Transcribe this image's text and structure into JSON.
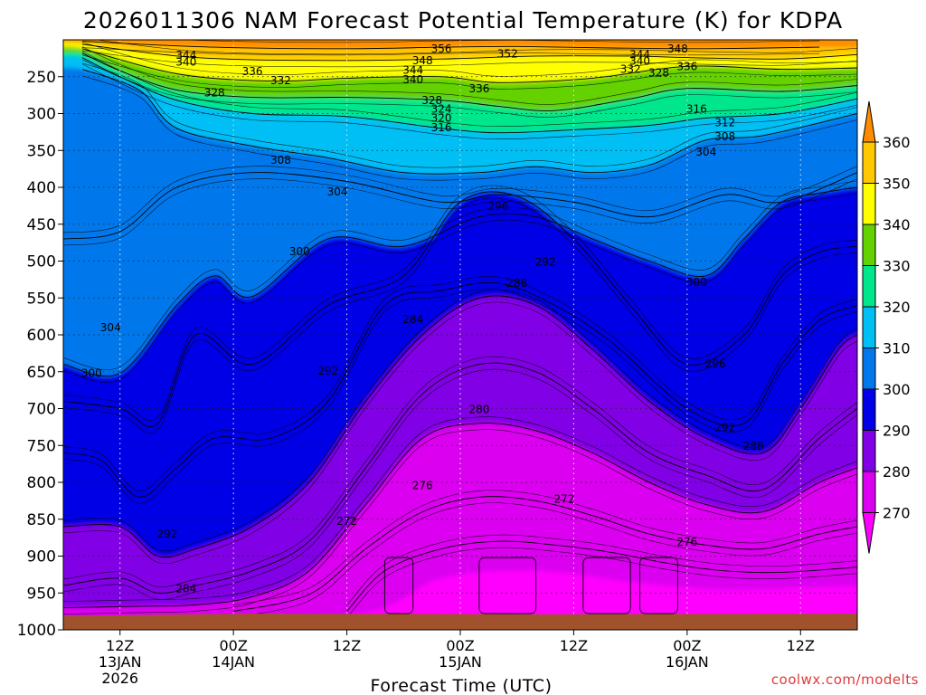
{
  "chart_data": {
    "type": "contour",
    "title": "2026011306 NAM Forecast Potential Temperature (K) for KDPA",
    "xlabel": "Forecast Time (UTC)",
    "ylabel": "",
    "credit": "coolwx.com/modelts",
    "y_axis": {
      "scale": "pressure (reversed, hPa)",
      "range": [
        200,
        1000
      ],
      "ticks": [
        "250",
        "300",
        "350",
        "400",
        "450",
        "500",
        "550",
        "600",
        "650",
        "700",
        "750",
        "800",
        "850",
        "900",
        "950",
        "1000"
      ]
    },
    "x_axis": {
      "range_hours": [
        0,
        84
      ],
      "ticks": [
        {
          "h": 6,
          "line1": "12Z",
          "line2": "13JAN",
          "line3": "2026"
        },
        {
          "h": 18,
          "line1": "00Z",
          "line2": "14JAN",
          "line3": ""
        },
        {
          "h": 30,
          "line1": "12Z",
          "line2": "",
          "line3": ""
        },
        {
          "h": 42,
          "line1": "00Z",
          "line2": "15JAN",
          "line3": ""
        },
        {
          "h": 54,
          "line1": "12Z",
          "line2": "",
          "line3": ""
        },
        {
          "h": 66,
          "line1": "00Z",
          "line2": "16JAN",
          "line3": ""
        },
        {
          "h": 78,
          "line1": "12Z",
          "line2": "",
          "line3": ""
        }
      ]
    },
    "grid": true,
    "colorbar": {
      "levels": [
        "360",
        "350",
        "340",
        "330",
        "320",
        "310",
        "300",
        "290",
        "280",
        "270"
      ],
      "colors": [
        "#ff8c00",
        "#ffc800",
        "#ffff00",
        "#64d200",
        "#00e68c",
        "#00bff5",
        "#0078eb",
        "#0000e6",
        "#8200e6",
        "#dc00f0",
        "#ff00ff"
      ]
    },
    "series": [
      {
        "name": "",
        "level": 356,
        "values": [
          [
            2,
            202
          ],
          [
            16,
            210
          ],
          [
            30,
            212
          ],
          [
            40,
            210
          ],
          [
            48,
            209
          ],
          [
            58,
            211
          ],
          [
            68,
            212
          ],
          [
            80,
            210
          ]
        ]
      },
      {
        "name": "",
        "level": 344,
        "values": [
          [
            2,
            206
          ],
          [
            14,
            224
          ],
          [
            28,
            228
          ],
          [
            40,
            226
          ],
          [
            50,
            222
          ],
          [
            60,
            222
          ],
          [
            66,
            224
          ],
          [
            76,
            226
          ],
          [
            84,
            220
          ]
        ]
      },
      {
        "name": "",
        "level": 336,
        "values": [
          [
            2,
            212
          ],
          [
            12,
            246
          ],
          [
            22,
            256
          ],
          [
            30,
            252
          ],
          [
            40,
            250
          ],
          [
            46,
            258
          ],
          [
            56,
            252
          ],
          [
            66,
            236
          ],
          [
            76,
            240
          ],
          [
            84,
            238
          ]
        ]
      },
      {
        "name": "",
        "level": 328,
        "values": [
          [
            2,
            218
          ],
          [
            6,
            242
          ],
          [
            12,
            268
          ],
          [
            20,
            278
          ],
          [
            30,
            278
          ],
          [
            40,
            282
          ],
          [
            46,
            290
          ],
          [
            52,
            296
          ],
          [
            60,
            280
          ],
          [
            66,
            266
          ],
          [
            76,
            270
          ],
          [
            84,
            262
          ]
        ]
      },
      {
        "name": "",
        "level": 316,
        "values": [
          [
            2,
            224
          ],
          [
            6,
            250
          ],
          [
            12,
            282
          ],
          [
            20,
            300
          ],
          [
            30,
            304
          ],
          [
            40,
            320
          ],
          [
            46,
            326
          ],
          [
            54,
            322
          ],
          [
            62,
            316
          ],
          [
            68,
            306
          ],
          [
            76,
            300
          ],
          [
            84,
            280
          ]
        ]
      },
      {
        "name": "",
        "level": 308,
        "values": [
          [
            2,
            240
          ],
          [
            8,
            268
          ],
          [
            12,
            320
          ],
          [
            20,
            344
          ],
          [
            28,
            360
          ],
          [
            36,
            380
          ],
          [
            44,
            380
          ],
          [
            50,
            372
          ],
          [
            56,
            380
          ],
          [
            62,
            370
          ],
          [
            68,
            336
          ],
          [
            74,
            330
          ],
          [
            84,
            300
          ]
        ]
      },
      {
        "name": "",
        "level": 304,
        "values": [
          [
            0,
            470
          ],
          [
            6,
            460
          ],
          [
            12,
            400
          ],
          [
            20,
            380
          ],
          [
            30,
            392
          ],
          [
            40,
            420
          ],
          [
            46,
            410
          ],
          [
            54,
            420
          ],
          [
            62,
            440
          ],
          [
            70,
            410
          ],
          [
            76,
            420
          ],
          [
            84,
            380
          ]
        ]
      },
      {
        "name": "",
        "level": 300,
        "values": [
          [
            0,
            640
          ],
          [
            6,
            652
          ],
          [
            12,
            560
          ],
          [
            16,
            520
          ],
          [
            20,
            548
          ],
          [
            28,
            470
          ],
          [
            36,
            480
          ],
          [
            44,
            440
          ],
          [
            50,
            440
          ],
          [
            56,
            470
          ],
          [
            62,
            500
          ],
          [
            68,
            520
          ],
          [
            72,
            470
          ],
          [
            76,
            420
          ],
          [
            80,
            408
          ],
          [
            84,
            400
          ]
        ]
      },
      {
        "name": "",
        "level": 296,
        "values": [
          [
            0,
            690
          ],
          [
            6,
            700
          ],
          [
            10,
            720
          ],
          [
            14,
            600
          ],
          [
            20,
            640
          ],
          [
            28,
            560
          ],
          [
            36,
            520
          ],
          [
            42,
            420
          ],
          [
            48,
            412
          ],
          [
            54,
            470
          ],
          [
            60,
            560
          ],
          [
            66,
            640
          ],
          [
            72,
            600
          ],
          [
            76,
            520
          ],
          [
            80,
            488
          ],
          [
            84,
            480
          ]
        ]
      },
      {
        "name": "",
        "level": 292,
        "values": [
          [
            0,
            760
          ],
          [
            4,
            770
          ],
          [
            8,
            820
          ],
          [
            12,
            780
          ],
          [
            16,
            740
          ],
          [
            22,
            740
          ],
          [
            28,
            690
          ],
          [
            34,
            560
          ],
          [
            40,
            540
          ],
          [
            46,
            530
          ],
          [
            52,
            560
          ],
          [
            58,
            610
          ],
          [
            66,
            700
          ],
          [
            72,
            720
          ],
          [
            76,
            640
          ],
          [
            80,
            580
          ],
          [
            84,
            560
          ]
        ]
      },
      {
        "name": "",
        "level": 288,
        "values": [
          [
            0,
            860
          ],
          [
            6,
            860
          ],
          [
            10,
            900
          ],
          [
            14,
            890
          ],
          [
            20,
            860
          ],
          [
            26,
            800
          ],
          [
            32,
            690
          ],
          [
            38,
            600
          ],
          [
            44,
            550
          ],
          [
            50,
            560
          ],
          [
            56,
            620
          ],
          [
            62,
            690
          ],
          [
            68,
            740
          ],
          [
            74,
            760
          ],
          [
            78,
            700
          ],
          [
            82,
            620
          ],
          [
            84,
            600
          ]
        ]
      },
      {
        "name": "",
        "level": 284,
        "values": [
          [
            0,
            940
          ],
          [
            6,
            930
          ],
          [
            10,
            950
          ],
          [
            14,
            940
          ],
          [
            20,
            920
          ],
          [
            26,
            880
          ],
          [
            32,
            780
          ],
          [
            38,
            680
          ],
          [
            44,
            640
          ],
          [
            50,
            650
          ],
          [
            56,
            700
          ],
          [
            62,
            760
          ],
          [
            68,
            790
          ],
          [
            74,
            810
          ],
          [
            80,
            740
          ],
          [
            84,
            700
          ]
        ]
      },
      {
        "name": "",
        "level": 280,
        "values": [
          [
            0,
            970
          ],
          [
            8,
            968
          ],
          [
            14,
            966
          ],
          [
            20,
            955
          ],
          [
            26,
            920
          ],
          [
            32,
            830
          ],
          [
            38,
            740
          ],
          [
            44,
            720
          ],
          [
            50,
            730
          ],
          [
            56,
            760
          ],
          [
            62,
            800
          ],
          [
            68,
            830
          ],
          [
            74,
            840
          ],
          [
            80,
            800
          ],
          [
            84,
            780
          ]
        ]
      },
      {
        "name": "",
        "level": 276,
        "values": [
          [
            18,
            975
          ],
          [
            26,
            952
          ],
          [
            32,
            890
          ],
          [
            38,
            840
          ],
          [
            44,
            820
          ],
          [
            50,
            825
          ],
          [
            56,
            845
          ],
          [
            62,
            870
          ],
          [
            68,
            885
          ],
          [
            74,
            890
          ],
          [
            80,
            870
          ],
          [
            84,
            860
          ]
        ]
      },
      {
        "name": "",
        "level": 272,
        "values": [
          [
            30,
            975
          ],
          [
            34,
            920
          ],
          [
            40,
            890
          ],
          [
            46,
            880
          ],
          [
            52,
            885
          ],
          [
            58,
            895
          ],
          [
            64,
            910
          ],
          [
            70,
            920
          ],
          [
            76,
            922
          ],
          [
            84,
            915
          ]
        ]
      }
    ],
    "labels": [
      {
        "text": "356",
        "h": 40,
        "p": 212
      },
      {
        "text": "352",
        "h": 47,
        "p": 219
      },
      {
        "text": "348",
        "h": 38,
        "p": 228
      },
      {
        "text": "348",
        "h": 65,
        "p": 212
      },
      {
        "text": "344",
        "h": 13,
        "p": 221
      },
      {
        "text": "344",
        "h": 37,
        "p": 241
      },
      {
        "text": "344",
        "h": 61,
        "p": 220
      },
      {
        "text": "340",
        "h": 13,
        "p": 230
      },
      {
        "text": "340",
        "h": 37,
        "p": 254
      },
      {
        "text": "340",
        "h": 61,
        "p": 229
      },
      {
        "text": "336",
        "h": 20,
        "p": 243
      },
      {
        "text": "336",
        "h": 44,
        "p": 266
      },
      {
        "text": "336",
        "h": 66,
        "p": 236
      },
      {
        "text": "332",
        "h": 23,
        "p": 255
      },
      {
        "text": "332",
        "h": 60,
        "p": 240
      },
      {
        "text": "328",
        "h": 16,
        "p": 272
      },
      {
        "text": "328",
        "h": 39,
        "p": 282
      },
      {
        "text": "328",
        "h": 63,
        "p": 245
      },
      {
        "text": "324",
        "h": 40,
        "p": 294
      },
      {
        "text": "320",
        "h": 40,
        "p": 306
      },
      {
        "text": "316",
        "h": 40,
        "p": 319
      },
      {
        "text": "316",
        "h": 67,
        "p": 294
      },
      {
        "text": "312",
        "h": 70,
        "p": 312
      },
      {
        "text": "308",
        "h": 23,
        "p": 363
      },
      {
        "text": "308",
        "h": 70,
        "p": 331
      },
      {
        "text": "304",
        "h": 29,
        "p": 406
      },
      {
        "text": "304",
        "h": 68,
        "p": 352
      },
      {
        "text": "304",
        "h": 5,
        "p": 590
      },
      {
        "text": "300",
        "h": 25,
        "p": 487
      },
      {
        "text": "300",
        "h": 67,
        "p": 529
      },
      {
        "text": "300",
        "h": 3,
        "p": 652
      },
      {
        "text": "296",
        "h": 46,
        "p": 426
      },
      {
        "text": "296",
        "h": 69,
        "p": 639
      },
      {
        "text": "292",
        "h": 51,
        "p": 501
      },
      {
        "text": "292",
        "h": 28,
        "p": 649
      },
      {
        "text": "292",
        "h": 70,
        "p": 726
      },
      {
        "text": "292",
        "h": 11,
        "p": 870
      },
      {
        "text": "288",
        "h": 48,
        "p": 530
      },
      {
        "text": "288",
        "h": 73,
        "p": 751
      },
      {
        "text": "284",
        "h": 37,
        "p": 579
      },
      {
        "text": "284",
        "h": 13,
        "p": 944
      },
      {
        "text": "280",
        "h": 44,
        "p": 701
      },
      {
        "text": "276",
        "h": 38,
        "p": 804
      },
      {
        "text": "276",
        "h": 66,
        "p": 881
      },
      {
        "text": "272",
        "h": 30,
        "p": 853
      },
      {
        "text": "272",
        "h": 53,
        "p": 823
      }
    ]
  }
}
